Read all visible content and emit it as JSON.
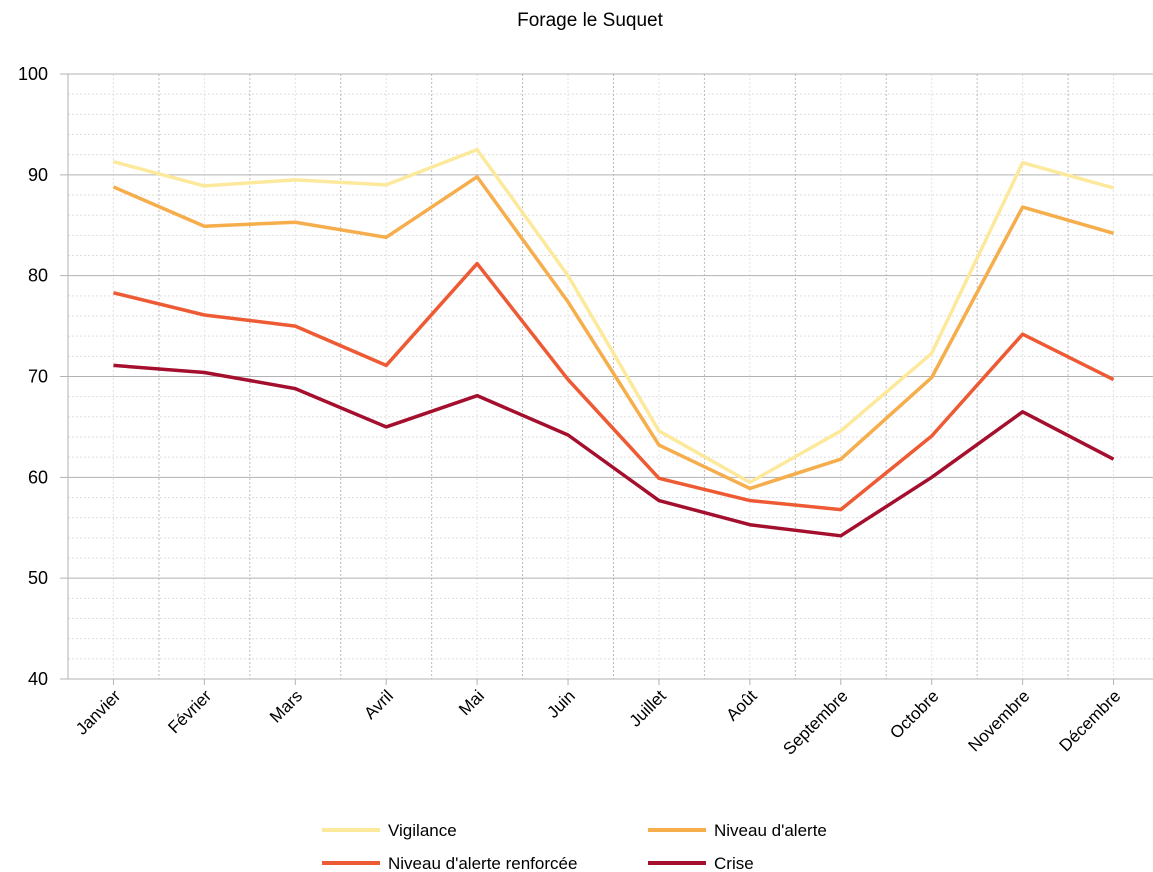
{
  "chart_data": {
    "type": "line",
    "title": "Forage le Suquet",
    "categories": [
      "Janvier",
      "Février",
      "Mars",
      "Avril",
      "Mai",
      "Juin",
      "Juillet",
      "Août",
      "Septembre",
      "Octobre",
      "Novembre",
      "Décembre"
    ],
    "series": [
      {
        "name": "Vigilance",
        "color": "#fde99c",
        "values": [
          91.3,
          88.9,
          89.5,
          89.0,
          92.5,
          80.0,
          64.6,
          59.5,
          64.6,
          72.3,
          91.2,
          88.7
        ]
      },
      {
        "name": "Niveau d'alerte",
        "color": "#f6ad4c",
        "values": [
          88.8,
          84.9,
          85.3,
          83.8,
          89.8,
          77.4,
          63.2,
          58.9,
          61.8,
          69.9,
          86.8,
          84.2
        ]
      },
      {
        "name": "Niveau d'alerte renforcée",
        "color": "#ee5a33",
        "values": [
          78.3,
          76.1,
          75.0,
          71.1,
          81.2,
          69.7,
          59.9,
          57.7,
          56.8,
          64.1,
          74.2,
          69.7
        ]
      },
      {
        "name": "Crise",
        "color": "#a50f2e",
        "values": [
          71.1,
          70.4,
          68.8,
          65.0,
          68.1,
          64.2,
          57.7,
          55.3,
          54.2,
          60.0,
          66.5,
          61.8
        ]
      }
    ],
    "ylim": [
      40,
      100
    ],
    "yticks": [
      40,
      50,
      60,
      70,
      80,
      90,
      100
    ],
    "grid": true,
    "legend": "bottom"
  }
}
